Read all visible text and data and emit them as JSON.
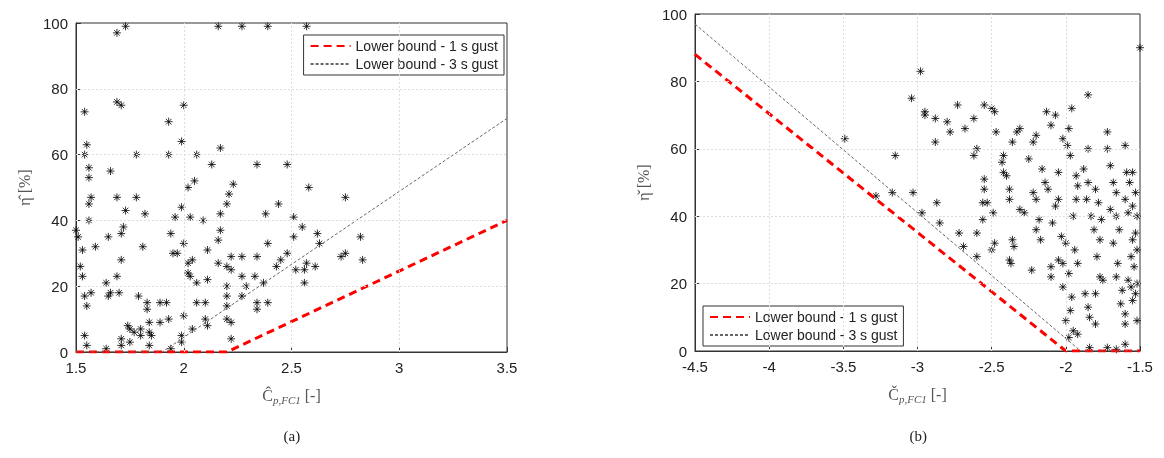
{
  "chart_data": [
    {
      "type": "scatter",
      "xlabel": "Ĉ$_{p,FC1}$ [-]",
      "ylabel": "η̂ [%]",
      "annotations": [
        "(a)"
      ],
      "xlim": [
        1.5,
        3.5
      ],
      "xticks": [
        1.5,
        2,
        2.5,
        3,
        3.5
      ],
      "ylim": [
        0,
        100
      ],
      "yticks": [
        0,
        20,
        40,
        60,
        80,
        100
      ],
      "grid": true,
      "legend": "top right",
      "series": [
        {
          "color": "#000000",
          "marker": "cross",
          "x": [
            1.73,
            1.69,
            2.16,
            2.27,
            2.39,
            2.57,
            1.69,
            1.71,
            1.54,
            2.0,
            1.93,
            1.55,
            1.54,
            1.56,
            1.56,
            1.66,
            1.78,
            1.93,
            1.99,
            2.06,
            2.17,
            2.13,
            2.34,
            2.48,
            2.58,
            2.05,
            2.02,
            2.23,
            2.21,
            2.2,
            2.44,
            1.56,
            1.57,
            1.69,
            1.78,
            1.56,
            1.73,
            1.82,
            1.99,
            1.96,
            2.03,
            2.09,
            2.17,
            2.17,
            2.38,
            2.75,
            1.5,
            1.51,
            1.53,
            1.59,
            1.65,
            1.71,
            1.72,
            1.81,
            1.94,
            1.95,
            1.97,
            2.0,
            2.02,
            2.04,
            2.11,
            2.16,
            2.39,
            2.51,
            2.51,
            2.55,
            2.62,
            2.63,
            2.82,
            1.52,
            1.53,
            1.71,
            1.69,
            1.64,
            1.65,
            1.66,
            1.57,
            1.54,
            1.55,
            1.7,
            1.79,
            2.02,
            2.03,
            2.06,
            2.11,
            2.16,
            2.2,
            2.22,
            2.22,
            2.27,
            2.27,
            2.29,
            2.34,
            2.33,
            2.37,
            2.43,
            2.45,
            2.48,
            2.52,
            2.56,
            2.56,
            2.57,
            2.61,
            2.73,
            2.75,
            2.83,
            1.83,
            1.83,
            1.89,
            1.92,
            1.93,
            2.0,
            2.06,
            2.1,
            2.2,
            2.2,
            2.2,
            2.2,
            2.22,
            2.27,
            2.34,
            2.34,
            2.39,
            1.74,
            1.75,
            1.77,
            1.8,
            1.8,
            1.84,
            1.84,
            1.85,
            1.89,
            1.99,
            1.99,
            2.04,
            2.1,
            2.11,
            2.22,
            1.54,
            1.55,
            1.64,
            1.71,
            1.71,
            1.75,
            1.84,
            1.94
          ],
          "values": [
            99,
            97,
            99,
            99,
            99,
            99,
            76,
            75,
            73,
            75,
            70,
            63,
            60,
            56,
            53,
            55,
            60,
            60,
            64,
            60,
            62,
            57,
            57,
            57,
            50,
            52,
            50,
            51,
            48,
            45,
            45,
            45,
            47,
            47,
            47,
            40,
            43,
            42,
            44,
            41,
            41,
            40,
            42,
            37,
            42,
            47,
            37,
            35,
            31,
            32,
            35,
            36,
            38,
            32,
            36,
            30,
            30,
            33,
            27,
            28,
            31,
            34,
            33,
            41,
            35,
            38,
            36,
            33,
            35,
            26,
            23,
            28,
            23,
            21,
            17,
            18,
            18,
            17,
            14,
            18,
            17,
            24,
            23,
            21,
            22,
            27,
            26,
            29,
            25,
            29,
            23,
            20,
            29,
            23,
            21,
            26,
            28,
            30,
            25,
            25,
            21,
            27,
            26,
            29,
            30,
            28,
            15,
            13,
            15,
            15,
            10,
            11,
            15,
            15,
            20,
            17,
            14,
            10,
            9,
            17,
            15,
            13,
            15,
            8,
            7,
            6,
            7,
            5,
            9,
            6,
            5,
            9,
            5,
            3,
            7,
            10,
            8,
            4,
            5,
            2,
            1,
            4,
            2,
            3,
            2,
            1
          ]
        },
        {
          "type": "line",
          "name": "Lower bound - 1 s gust",
          "color": "#ff0000",
          "line_style": "dashed",
          "x": [
            1.5,
            2.2,
            3.5
          ],
          "values": [
            0,
            0,
            40
          ]
        },
        {
          "type": "line",
          "name": "Lower bound - 3 s gust",
          "color": "#666666",
          "line_style": "dotted",
          "x": [
            1.5,
            1.9,
            3.5
          ],
          "values": [
            0,
            0,
            71
          ]
        }
      ]
    },
    {
      "type": "scatter",
      "xlabel": "Č$_{p,FC1}$ [-]",
      "ylabel": "η̌ [%]",
      "annotations": [
        "(b)"
      ],
      "xlim": [
        -4.5,
        -1.5
      ],
      "xticks": [
        -4.5,
        -4,
        -3.5,
        -3,
        -2.5,
        -2,
        -1.5
      ],
      "ylim": [
        0,
        100
      ],
      "yticks": [
        0,
        20,
        40,
        60,
        80,
        100
      ],
      "grid": true,
      "legend": "bottom left",
      "series": [
        {
          "color": "#000000",
          "marker": "cross",
          "x": [
            -3.49,
            -3.15,
            -3.17,
            -3.28,
            -3.03,
            -2.97,
            -2.98,
            -3.04,
            -2.95,
            -2.95,
            -2.88,
            -2.88,
            -2.8,
            -2.78,
            -2.73,
            -2.68,
            -2.62,
            -2.85,
            -2.87,
            -2.72,
            -2.69,
            -2.6,
            -2.6,
            -2.55,
            -2.5,
            -2.48,
            -2.47,
            -2.6,
            -2.62,
            -2.55,
            -2.55,
            -2.56,
            -2.53,
            -2.49,
            -2.56,
            -2.5,
            -2.48,
            -2.43,
            -2.42,
            -2.4,
            -2.42,
            -2.38,
            -2.38,
            -2.36,
            -2.33,
            -2.31,
            -2.36,
            -2.35,
            -2.38,
            -2.37,
            -2.31,
            -2.28,
            -2.25,
            -2.22,
            -2.2,
            -2.22,
            -2.2,
            -2.16,
            -2.13,
            -2.1,
            -2.07,
            -2.14,
            -2.12,
            -2.18,
            -2.2,
            -2.17,
            -2.23,
            -2.1,
            -2.1,
            -2.09,
            -2.07,
            -2.05,
            -2.05,
            -2.02,
            -1.99,
            -1.98,
            -1.97,
            -1.96,
            -1.93,
            -1.92,
            -1.93,
            -1.95,
            -2.03,
            -2.0,
            -2.05,
            -2.02,
            -1.94,
            -1.92,
            -1.98,
            -2.02,
            -1.96,
            -1.97,
            -2.0,
            -1.98,
            -1.95,
            -1.92,
            -1.87,
            -1.85,
            -1.85,
            -1.88,
            -1.85,
            -1.86,
            -1.83,
            -1.8,
            -1.78,
            -1.81,
            -1.76,
            -1.77,
            -1.79,
            -1.77,
            -1.75,
            -1.8,
            -1.85,
            -1.84,
            -1.8,
            -1.84,
            -1.72,
            -1.72,
            -1.7,
            -1.68,
            -1.66,
            -1.7,
            -1.66,
            -1.64,
            -1.68,
            -1.65,
            -1.66,
            -1.62,
            -1.63,
            -1.6,
            -1.6,
            -1.72,
            -1.66,
            -1.6,
            -1.6,
            -1.59,
            -1.57,
            -1.55,
            -1.6,
            -1.58,
            -1.55,
            -1.53,
            -1.52,
            -1.53,
            -1.55,
            -1.52,
            -1.56,
            -1.54,
            -1.52,
            -1.53,
            -1.56,
            -1.58,
            -1.55,
            -1.52,
            -1.5
          ],
          "values": [
            63,
            58,
            47,
            46,
            47,
            41,
            83,
            75,
            70,
            71,
            69,
            62,
            68,
            65,
            73,
            66,
            69,
            38,
            44,
            35,
            31,
            35,
            28,
            73,
            72,
            71,
            65,
            60,
            58,
            51,
            48,
            44,
            44,
            41,
            39,
            30,
            32,
            56,
            53,
            52,
            58,
            48,
            45,
            62,
            65,
            66,
            33,
            31,
            27,
            26,
            42,
            41,
            57,
            47,
            45,
            62,
            64,
            54,
            71,
            67,
            70,
            50,
            48,
            39,
            36,
            33,
            24,
            22,
            25,
            38,
            43,
            45,
            53,
            63,
            61,
            66,
            58,
            72,
            52,
            49,
            45,
            40,
            34,
            32,
            27,
            26,
            30,
            26,
            23,
            19,
            16,
            12,
            9,
            4,
            6,
            5,
            17,
            76,
            60,
            54,
            50,
            45,
            40,
            48,
            44,
            36,
            39,
            33,
            28,
            22,
            21,
            17,
            13,
            10,
            8,
            1,
            65,
            60,
            55,
            50,
            47,
            42,
            40,
            36,
            32,
            26,
            22,
            18,
            14,
            11,
            8,
            1,
            0.5,
            2,
            61,
            53,
            50,
            53,
            45,
            41,
            43,
            47,
            40,
            35,
            33,
            30,
            28,
            25,
            20,
            17,
            19,
            21,
            15,
            9,
            90
          ]
        },
        {
          "type": "line",
          "name": "Lower bound - 1 s gust",
          "color": "#ff0000",
          "line_style": "dashed",
          "x": [
            -4.5,
            -2,
            -1.5
          ],
          "values": [
            88,
            0,
            0
          ]
        },
        {
          "type": "line",
          "name": "Lower bound - 3 s gust",
          "color": "#666666",
          "line_style": "dotted",
          "x": [
            -4.5,
            -1.9,
            -1.5
          ],
          "values": [
            97,
            0,
            0
          ]
        }
      ]
    }
  ]
}
